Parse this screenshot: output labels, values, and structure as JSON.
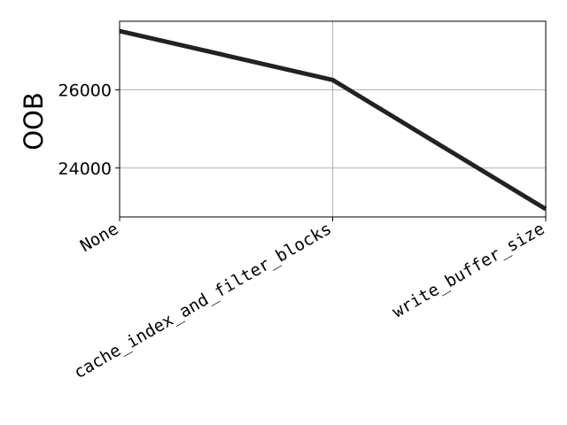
{
  "chart_data": {
    "type": "line",
    "categories": [
      "None",
      "cache_index_and_filter_blocks",
      "write_buffer_size"
    ],
    "series": [
      {
        "values": [
          27500,
          26250,
          22950
        ],
        "color": "#222222"
      }
    ],
    "title": "",
    "xlabel": "",
    "ylabel": "OOB",
    "ylim": [
      22750,
      27750
    ],
    "yticks": [
      24000,
      26000
    ],
    "ytick_labels": [
      "24000",
      "26000"
    ],
    "grid": true
  }
}
